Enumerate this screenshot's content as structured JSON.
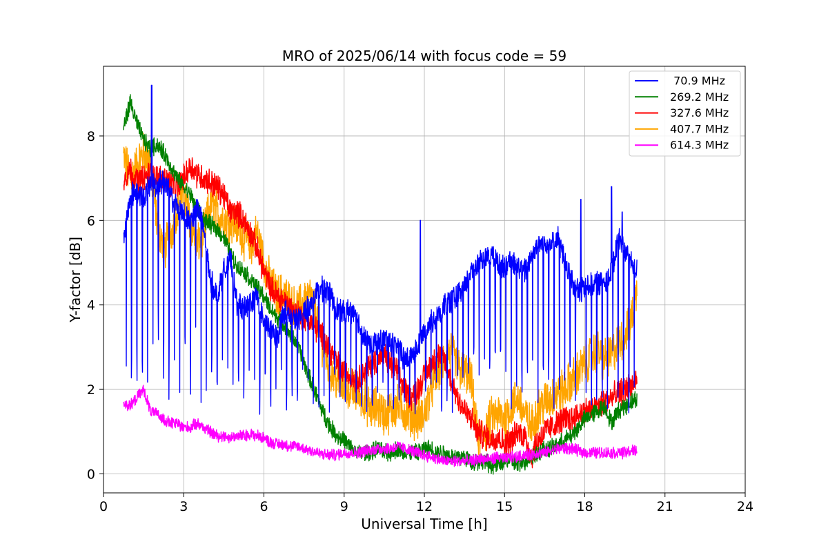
{
  "chart_data": {
    "type": "line",
    "title": "MRO of 2025/06/14 with focus code = 59",
    "xlabel": "Universal Time [h]",
    "ylabel": "Y-factor [dB]",
    "xlim": [
      0,
      24
    ],
    "ylim": [
      -0.45,
      9.65
    ],
    "xticks": [
      "0",
      "3",
      "6",
      "9",
      "12",
      "15",
      "18",
      "21",
      "24"
    ],
    "yticks": [
      "0",
      "2",
      "4",
      "6",
      "8"
    ],
    "grid": true,
    "legend_position": "top-right",
    "series": [
      {
        "name": " 70.9 MHz",
        "color": "#0000ff",
        "x": [
          0.75,
          1.0,
          1.25,
          1.5,
          1.75,
          2.0,
          2.25,
          2.5,
          2.75,
          3.0,
          3.25,
          3.5,
          3.75,
          4.0,
          4.25,
          4.5,
          4.75,
          5.0,
          5.25,
          5.5,
          5.75,
          6.0,
          6.25,
          6.5,
          6.75,
          7.0,
          7.25,
          7.5,
          7.75,
          8.0,
          8.25,
          8.5,
          8.75,
          9.0,
          9.25,
          9.5,
          9.75,
          10.0,
          10.25,
          10.5,
          10.75,
          11.0,
          11.25,
          11.5,
          11.75,
          12.0,
          12.25,
          12.5,
          12.75,
          13.0,
          13.25,
          13.5,
          13.75,
          14.0,
          14.25,
          14.5,
          14.75,
          15.0,
          15.25,
          15.5,
          15.75,
          16.0,
          16.25,
          16.5,
          16.75,
          17.0,
          17.25,
          17.5,
          17.75,
          18.0,
          18.25,
          18.5,
          18.75,
          19.0,
          19.25,
          19.5,
          19.75,
          19.95
        ],
        "values": [
          5.5,
          6.6,
          6.7,
          6.5,
          6.9,
          6.8,
          7.0,
          6.6,
          6.3,
          6.2,
          6.0,
          6.3,
          5.8,
          4.6,
          4.2,
          4.8,
          5.1,
          4.0,
          3.9,
          4.1,
          4.2,
          3.6,
          3.4,
          3.2,
          3.9,
          3.7,
          3.6,
          3.8,
          4.0,
          4.3,
          4.4,
          4.2,
          3.9,
          3.8,
          3.9,
          3.6,
          3.3,
          3.0,
          3.1,
          3.2,
          3.1,
          3.0,
          2.7,
          2.8,
          3.0,
          3.4,
          3.6,
          3.7,
          4.0,
          4.1,
          4.2,
          4.4,
          4.8,
          5.0,
          5.1,
          5.2,
          5.0,
          4.9,
          5.0,
          4.9,
          4.8,
          5.2,
          5.4,
          5.5,
          5.5,
          5.6,
          5.0,
          4.6,
          4.3,
          4.4,
          4.5,
          4.5,
          4.6,
          4.7,
          5.6,
          5.3,
          5.0,
          4.8
        ],
        "dips_to": 1.4,
        "spikes": [
          [
            1.8,
            9.2
          ],
          [
            11.85,
            6.0
          ],
          [
            17.85,
            6.5
          ],
          [
            19.0,
            6.8
          ],
          [
            19.4,
            6.2
          ]
        ]
      },
      {
        "name": "269.2 MHz",
        "color": "#008000",
        "x": [
          0.75,
          1.0,
          1.25,
          1.5,
          1.75,
          2.0,
          2.25,
          2.5,
          2.75,
          3.0,
          3.25,
          3.5,
          3.75,
          4.0,
          4.25,
          4.5,
          4.75,
          5.0,
          5.25,
          5.5,
          5.75,
          6.0,
          6.25,
          6.5,
          6.75,
          7.0,
          7.25,
          7.5,
          7.75,
          8.0,
          8.25,
          8.5,
          8.75,
          9.0,
          9.25,
          9.5,
          9.75,
          10.0,
          10.25,
          10.5,
          10.75,
          11.0,
          11.25,
          11.5,
          11.75,
          12.0,
          12.25,
          12.5,
          12.75,
          13.0,
          13.25,
          13.5,
          13.75,
          14.0,
          14.25,
          14.5,
          14.75,
          15.0,
          15.25,
          15.5,
          15.75,
          16.0,
          16.25,
          16.5,
          16.75,
          17.0,
          17.25,
          17.5,
          17.75,
          18.0,
          18.25,
          18.5,
          18.75,
          19.0,
          19.25,
          19.5,
          19.75,
          19.95
        ],
        "values": [
          8.2,
          8.8,
          8.3,
          7.9,
          7.7,
          7.8,
          7.6,
          7.3,
          7.0,
          6.8,
          6.6,
          6.3,
          6.0,
          5.9,
          5.8,
          5.6,
          5.2,
          4.9,
          4.8,
          4.6,
          4.4,
          4.2,
          3.9,
          3.7,
          3.5,
          3.3,
          3.1,
          2.6,
          2.2,
          1.8,
          1.4,
          1.1,
          0.9,
          0.8,
          0.6,
          0.5,
          0.5,
          0.5,
          0.6,
          0.5,
          0.5,
          0.6,
          0.5,
          0.5,
          0.5,
          0.6,
          0.6,
          0.5,
          0.5,
          0.4,
          0.4,
          0.4,
          0.3,
          0.3,
          0.3,
          0.2,
          0.2,
          0.3,
          0.3,
          0.2,
          0.3,
          0.4,
          0.5,
          0.6,
          0.6,
          0.7,
          0.8,
          0.9,
          1.1,
          1.3,
          1.4,
          1.5,
          1.6,
          1.2,
          1.5,
          1.6,
          1.7,
          1.8
        ]
      },
      {
        "name": "327.6 MHz",
        "color": "#ff0000",
        "x": [
          0.75,
          1.0,
          1.25,
          1.5,
          1.75,
          2.0,
          2.25,
          2.5,
          2.75,
          3.0,
          3.25,
          3.5,
          3.75,
          4.0,
          4.25,
          4.5,
          4.75,
          5.0,
          5.25,
          5.5,
          5.75,
          6.0,
          6.25,
          6.5,
          6.75,
          7.0,
          7.25,
          7.5,
          7.75,
          8.0,
          8.25,
          8.5,
          8.75,
          9.0,
          9.25,
          9.5,
          9.75,
          10.0,
          10.25,
          10.5,
          10.75,
          11.0,
          11.25,
          11.5,
          11.75,
          12.0,
          12.25,
          12.5,
          12.75,
          13.0,
          13.25,
          13.5,
          13.75,
          14.0,
          14.25,
          14.5,
          14.75,
          15.0,
          15.25,
          15.5,
          15.75,
          16.0,
          16.25,
          16.5,
          16.75,
          17.0,
          17.25,
          17.5,
          17.75,
          18.0,
          18.25,
          18.5,
          18.75,
          19.0,
          19.25,
          19.5,
          19.75,
          19.95
        ],
        "values": [
          7.0,
          7.2,
          6.9,
          7.0,
          7.1,
          7.0,
          7.0,
          6.9,
          6.8,
          7.0,
          7.3,
          7.1,
          7.0,
          6.9,
          6.8,
          6.6,
          6.2,
          6.2,
          6.0,
          5.7,
          5.3,
          4.8,
          4.4,
          4.2,
          4.1,
          3.9,
          3.8,
          3.7,
          3.6,
          3.4,
          3.2,
          2.9,
          2.6,
          2.4,
          2.3,
          2.2,
          2.4,
          2.6,
          2.7,
          2.8,
          2.6,
          2.4,
          2.0,
          1.8,
          2.0,
          2.3,
          2.6,
          2.8,
          2.7,
          2.2,
          1.8,
          1.5,
          1.3,
          1.0,
          0.9,
          0.8,
          0.9,
          0.7,
          0.8,
          1.0,
          0.9,
          0.4,
          0.8,
          1.0,
          1.1,
          1.2,
          1.3,
          1.3,
          1.4,
          1.5,
          1.5,
          1.6,
          1.7,
          1.8,
          1.9,
          2.0,
          2.1,
          2.2
        ]
      },
      {
        "name": "407.7 MHz",
        "color": "#ffa500",
        "x": [
          0.75,
          1.0,
          1.25,
          1.5,
          1.75,
          2.0,
          2.25,
          2.5,
          2.75,
          3.0,
          3.25,
          3.5,
          3.75,
          4.0,
          4.25,
          4.5,
          4.75,
          5.0,
          5.25,
          5.5,
          5.75,
          6.0,
          6.25,
          6.5,
          6.75,
          7.0,
          7.25,
          7.5,
          7.75,
          8.0,
          8.25,
          8.5,
          8.75,
          9.0,
          9.25,
          9.5,
          9.75,
          10.0,
          10.25,
          10.5,
          10.75,
          11.0,
          11.25,
          11.5,
          11.75,
          12.0,
          12.25,
          12.5,
          12.75,
          13.0,
          13.25,
          13.5,
          13.75,
          14.0,
          14.25,
          14.5,
          14.75,
          15.0,
          15.25,
          15.5,
          15.75,
          16.0,
          16.25,
          16.5,
          16.75,
          17.0,
          17.25,
          17.5,
          17.75,
          18.0,
          18.25,
          18.5,
          18.75,
          19.0,
          19.25,
          19.5,
          19.75,
          19.95
        ],
        "values": [
          7.5,
          7.0,
          7.3,
          7.6,
          7.4,
          6.0,
          5.3,
          5.6,
          6.3,
          6.6,
          6.0,
          5.4,
          5.7,
          6.4,
          6.2,
          6.0,
          6.0,
          5.9,
          5.6,
          5.4,
          5.7,
          5.0,
          4.5,
          4.2,
          4.3,
          4.0,
          3.9,
          4.1,
          4.2,
          3.6,
          2.9,
          2.4,
          2.2,
          2.1,
          2.0,
          1.9,
          1.8,
          1.5,
          1.6,
          1.4,
          1.5,
          1.6,
          1.5,
          1.4,
          1.3,
          1.4,
          2.0,
          2.4,
          2.7,
          2.9,
          2.5,
          2.4,
          2.2,
          0.8,
          1.0,
          1.3,
          1.4,
          1.3,
          1.6,
          1.8,
          1.4,
          1.1,
          1.5,
          1.7,
          1.8,
          1.9,
          2.0,
          2.2,
          2.4,
          2.6,
          2.8,
          2.9,
          2.7,
          2.8,
          3.1,
          3.3,
          3.7,
          4.3
        ]
      },
      {
        "name": "614.3 MHz",
        "color": "#ff00ff",
        "x": [
          0.75,
          1.0,
          1.25,
          1.5,
          1.75,
          2.0,
          2.25,
          2.5,
          2.75,
          3.0,
          3.25,
          3.5,
          3.75,
          4.0,
          4.25,
          4.5,
          4.75,
          5.0,
          5.25,
          5.5,
          5.75,
          6.0,
          6.25,
          6.5,
          6.75,
          7.0,
          7.25,
          7.5,
          7.75,
          8.0,
          8.25,
          8.5,
          8.75,
          9.0,
          9.25,
          9.5,
          9.75,
          10.0,
          10.25,
          10.5,
          10.75,
          11.0,
          11.25,
          11.5,
          11.75,
          12.0,
          12.25,
          12.5,
          12.75,
          13.0,
          13.25,
          13.5,
          13.75,
          14.0,
          14.25,
          14.5,
          14.75,
          15.0,
          15.25,
          15.5,
          15.75,
          16.0,
          16.25,
          16.5,
          16.75,
          17.0,
          17.25,
          17.5,
          17.75,
          18.0,
          18.25,
          18.5,
          18.75,
          19.0,
          19.25,
          19.5,
          19.75,
          19.95
        ],
        "values": [
          1.7,
          1.6,
          1.8,
          2.0,
          1.5,
          1.4,
          1.3,
          1.2,
          1.2,
          1.1,
          1.1,
          1.2,
          1.1,
          1.0,
          0.9,
          0.9,
          0.85,
          0.9,
          0.9,
          0.95,
          0.9,
          0.85,
          0.75,
          0.7,
          0.7,
          0.65,
          0.65,
          0.6,
          0.55,
          0.5,
          0.45,
          0.45,
          0.45,
          0.5,
          0.5,
          0.5,
          0.55,
          0.55,
          0.6,
          0.6,
          0.6,
          0.65,
          0.6,
          0.55,
          0.5,
          0.45,
          0.4,
          0.35,
          0.3,
          0.3,
          0.3,
          0.3,
          0.3,
          0.35,
          0.35,
          0.35,
          0.4,
          0.35,
          0.4,
          0.4,
          0.45,
          0.45,
          0.5,
          0.5,
          0.55,
          0.6,
          0.6,
          0.6,
          0.55,
          0.5,
          0.5,
          0.5,
          0.5,
          0.5,
          0.5,
          0.5,
          0.55,
          0.55
        ]
      }
    ]
  }
}
